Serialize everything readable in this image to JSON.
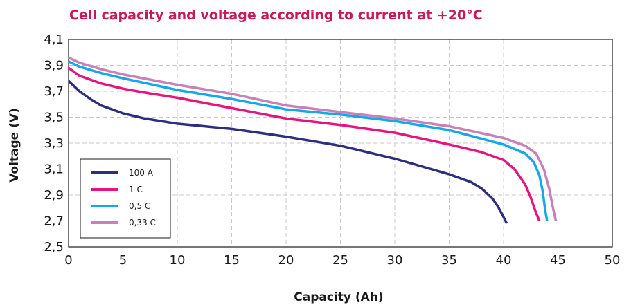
{
  "chart_data": {
    "type": "line",
    "title": "Cell capacity and voltage according to current at +20°C",
    "xlabel": "Capacity (Ah)",
    "ylabel": "Voltage (V)",
    "xlim": [
      0,
      50
    ],
    "ylim": [
      2.5,
      4.1
    ],
    "xticks": [
      "0",
      "5",
      "10",
      "15",
      "20",
      "25",
      "30",
      "35",
      "40",
      "45",
      "50"
    ],
    "yticks": [
      "2,5",
      "2,7",
      "2,9",
      "3,1",
      "3,3",
      "3,5",
      "3,7",
      "3,9",
      "4,1"
    ],
    "grid": true,
    "legend_position": "bottom-left",
    "colors": {
      "title": "#c8195a",
      "grid": "#c8c8c8"
    },
    "series": [
      {
        "name": "100 A",
        "color": "#2e2e7c",
        "x": [
          0,
          1,
          2,
          3,
          4,
          5,
          7,
          10,
          15,
          20,
          25,
          30,
          35,
          37,
          38,
          39,
          39.5,
          40,
          40.3
        ],
        "y": [
          3.78,
          3.7,
          3.64,
          3.59,
          3.56,
          3.53,
          3.49,
          3.45,
          3.41,
          3.35,
          3.28,
          3.18,
          3.06,
          3.0,
          2.95,
          2.87,
          2.81,
          2.73,
          2.68
        ]
      },
      {
        "name": "1 C",
        "color": "#e6147e",
        "x": [
          0,
          1,
          2,
          3,
          5,
          7,
          10,
          15,
          20,
          25,
          30,
          35,
          38,
          40,
          41,
          42,
          42.5,
          43,
          43.3
        ],
        "y": [
          3.88,
          3.82,
          3.79,
          3.76,
          3.72,
          3.69,
          3.65,
          3.57,
          3.49,
          3.44,
          3.38,
          3.29,
          3.23,
          3.17,
          3.1,
          2.98,
          2.88,
          2.76,
          2.7
        ]
      },
      {
        "name": "0,5 C",
        "color": "#14a8e6",
        "x": [
          0,
          1,
          3,
          5,
          10,
          15,
          20,
          25,
          30,
          35,
          40,
          42,
          42.8,
          43.3,
          43.6,
          43.8,
          44
        ],
        "y": [
          3.93,
          3.89,
          3.84,
          3.8,
          3.71,
          3.64,
          3.56,
          3.52,
          3.47,
          3.4,
          3.29,
          3.22,
          3.15,
          3.05,
          2.93,
          2.8,
          2.7
        ]
      },
      {
        "name": "0,33 C",
        "color": "#c880b8",
        "x": [
          0,
          1,
          3,
          5,
          10,
          15,
          20,
          25,
          30,
          35,
          40,
          42,
          43,
          43.7,
          44.2,
          44.5,
          44.8
        ],
        "y": [
          3.96,
          3.92,
          3.87,
          3.83,
          3.75,
          3.68,
          3.59,
          3.54,
          3.49,
          3.43,
          3.34,
          3.28,
          3.22,
          3.1,
          2.95,
          2.82,
          2.7
        ]
      }
    ]
  }
}
